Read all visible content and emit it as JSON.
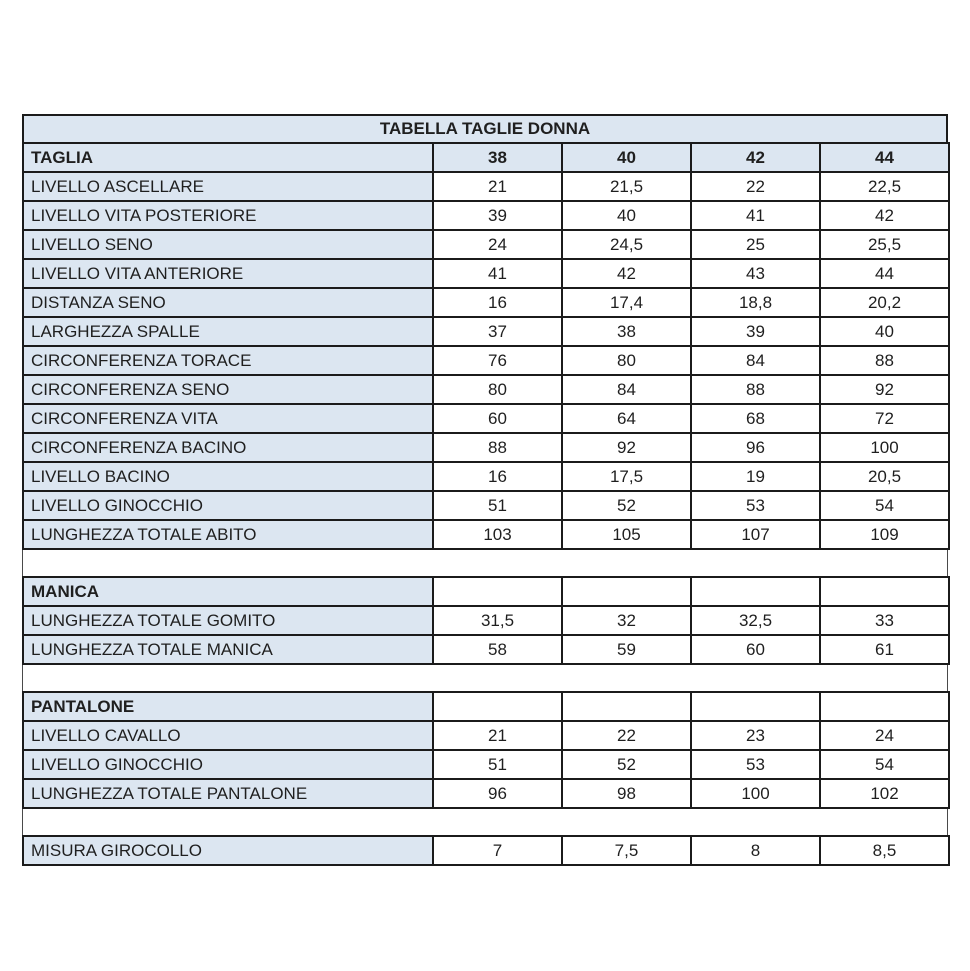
{
  "colors": {
    "accent": "#dce6f1",
    "border": "#1b1b1b",
    "text": "#1f1f1f",
    "background": "#ffffff"
  },
  "table": {
    "title": "TABELLA TAGLIE DONNA",
    "sections": [
      {
        "name": "corpo",
        "header": {
          "label": "TAGLIA",
          "values": [
            "38",
            "40",
            "42",
            "44"
          ],
          "highlight_values": true
        },
        "rows": [
          {
            "label": "LIVELLO ASCELLARE",
            "values": [
              "21",
              "21,5",
              "22",
              "22,5"
            ]
          },
          {
            "label": "LIVELLO VITA POSTERIORE",
            "values": [
              "39",
              "40",
              "41",
              "42"
            ]
          },
          {
            "label": "LIVELLO SENO",
            "values": [
              "24",
              "24,5",
              "25",
              "25,5"
            ]
          },
          {
            "label": "LIVELLO VITA ANTERIORE",
            "values": [
              "41",
              "42",
              "43",
              "44"
            ]
          },
          {
            "label": "DISTANZA SENO",
            "values": [
              "16",
              "17,4",
              "18,8",
              "20,2"
            ]
          },
          {
            "label": "LARGHEZZA SPALLE",
            "values": [
              "37",
              "38",
              "39",
              "40"
            ]
          },
          {
            "label": "CIRCONFERENZA TORACE",
            "values": [
              "76",
              "80",
              "84",
              "88"
            ]
          },
          {
            "label": "CIRCONFERENZA SENO",
            "values": [
              "80",
              "84",
              "88",
              "92"
            ]
          },
          {
            "label": "CIRCONFERENZA VITA",
            "values": [
              "60",
              "64",
              "68",
              "72"
            ]
          },
          {
            "label": "CIRCONFERENZA BACINO",
            "values": [
              "88",
              "92",
              "96",
              "100"
            ]
          },
          {
            "label": "LIVELLO BACINO",
            "values": [
              "16",
              "17,5",
              "19",
              "20,5"
            ]
          },
          {
            "label": "LIVELLO GINOCCHIO",
            "values": [
              "51",
              "52",
              "53",
              "54"
            ]
          },
          {
            "label": "LUNGHEZZA TOTALE ABITO",
            "values": [
              "103",
              "105",
              "107",
              "109"
            ]
          }
        ]
      },
      {
        "name": "manica",
        "header": {
          "label": "MANICA",
          "values": [
            "",
            "",
            "",
            ""
          ],
          "highlight_values": false
        },
        "rows": [
          {
            "label": "LUNGHEZZA TOTALE GOMITO",
            "values": [
              "31,5",
              "32",
              "32,5",
              "33"
            ]
          },
          {
            "label": "LUNGHEZZA TOTALE MANICA",
            "values": [
              "58",
              "59",
              "60",
              "61"
            ]
          }
        ]
      },
      {
        "name": "pantalone",
        "header": {
          "label": "PANTALONE",
          "values": [
            "",
            "",
            "",
            ""
          ],
          "highlight_values": false
        },
        "rows": [
          {
            "label": "LIVELLO CAVALLO",
            "values": [
              "21",
              "22",
              "23",
              "24"
            ]
          },
          {
            "label": "LIVELLO GINOCCHIO",
            "values": [
              "51",
              "52",
              "53",
              "54"
            ]
          },
          {
            "label": "LUNGHEZZA TOTALE PANTALONE",
            "values": [
              "96",
              "98",
              "100",
              "102"
            ]
          }
        ]
      },
      {
        "name": "girocollo",
        "header": null,
        "rows": [
          {
            "label": "MISURA GIROCOLLO",
            "values": [
              "7",
              "7,5",
              "8",
              "8,5"
            ]
          }
        ]
      }
    ]
  }
}
